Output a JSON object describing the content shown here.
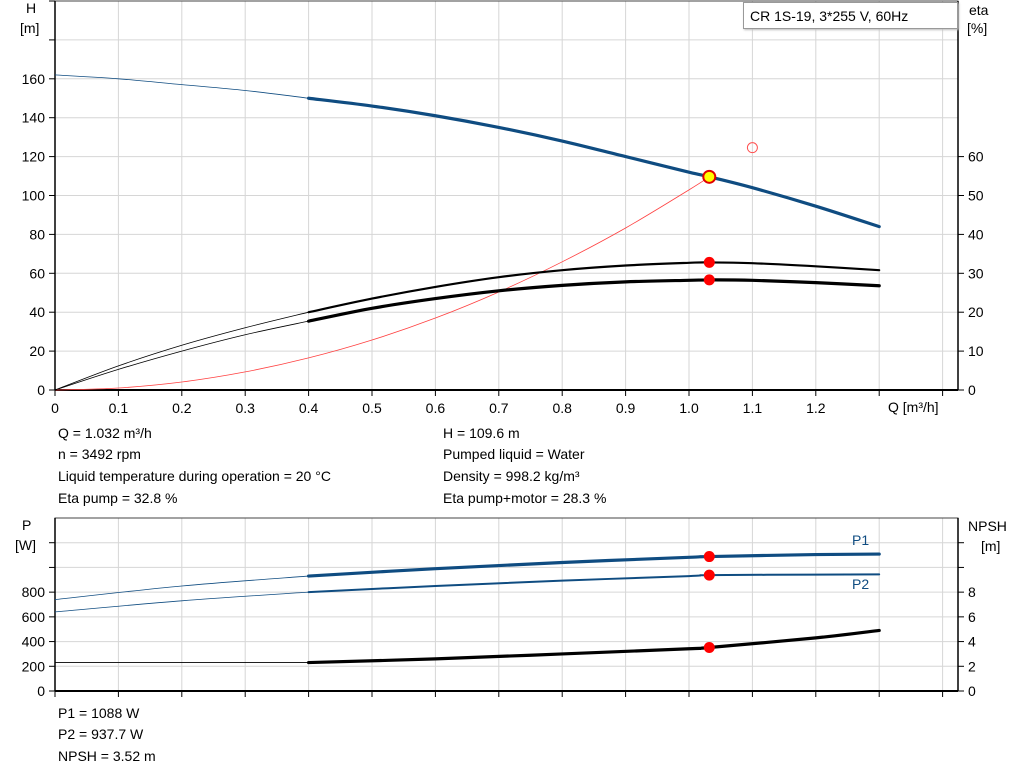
{
  "chart_data": [
    {
      "type": "line",
      "title": "",
      "legend_box": "CR 1S-19, 3*255 V, 60Hz",
      "xlabel": "Q [m³/h]",
      "ylabel_left": [
        "H",
        "[m]"
      ],
      "ylabel_right": [
        "eta",
        "[%]"
      ],
      "xlim": [
        0,
        1.42
      ],
      "ylim_left": [
        0,
        200
      ],
      "ylim_right": [
        0,
        100
      ],
      "x_ticks": [
        "0",
        "0.1",
        "0.2",
        "0.3",
        "0.4",
        "0.5",
        "0.6",
        "0.7",
        "0.8",
        "0.9",
        "1.0",
        "1.1",
        "1.2"
      ],
      "y_ticks_left": [
        "0",
        "20",
        "40",
        "60",
        "80",
        "100",
        "120",
        "140",
        "160"
      ],
      "y_ticks_right": [
        "0",
        "10",
        "20",
        "30",
        "40",
        "50",
        "60"
      ],
      "grid": true,
      "series": [
        {
          "name": "H",
          "axis": "left",
          "color": "#0f4c81",
          "x": [
            0,
            0.1,
            0.2,
            0.3,
            0.4,
            0.5,
            0.6,
            0.7,
            0.8,
            0.9,
            1.0,
            1.032,
            1.1,
            1.2,
            1.3
          ],
          "y": [
            162,
            160,
            157,
            154,
            150,
            146,
            141,
            135,
            128,
            120,
            112,
            109.6,
            104,
            94.5,
            84
          ]
        },
        {
          "name": "Eta pump",
          "axis": "right",
          "color": "#000000",
          "x": [
            0,
            0.1,
            0.2,
            0.3,
            0.4,
            0.5,
            0.6,
            0.7,
            0.8,
            0.9,
            1.0,
            1.032,
            1.1,
            1.2,
            1.3
          ],
          "y": [
            0,
            6.2,
            11.5,
            16,
            20,
            23.5,
            26.5,
            29,
            30.8,
            32,
            32.7,
            32.8,
            32.6,
            31.8,
            30.8
          ]
        },
        {
          "name": "Eta pump+motor",
          "axis": "right",
          "color": "#000000",
          "x": [
            0,
            0.1,
            0.2,
            0.3,
            0.4,
            0.5,
            0.6,
            0.7,
            0.8,
            0.9,
            1.0,
            1.032,
            1.1,
            1.2,
            1.3
          ],
          "y": [
            0,
            5.3,
            10,
            14.2,
            17.7,
            21,
            23.5,
            25.5,
            26.9,
            27.8,
            28.2,
            28.3,
            28.2,
            27.6,
            26.8
          ]
        },
        {
          "name": "System curve",
          "axis": "left",
          "color": "#ff4040",
          "x": [
            0,
            0.1,
            0.2,
            0.3,
            0.4,
            0.5,
            0.6,
            0.7,
            0.8,
            0.9,
            1.0,
            1.032
          ],
          "y": [
            0,
            1.03,
            4.1,
            9.3,
            16.5,
            25.7,
            37,
            50.4,
            65.9,
            83.3,
            102.9,
            109.6
          ]
        }
      ],
      "operating_point": {
        "q": 1.032,
        "h": 109.6,
        "eta_pump": 32.8,
        "eta_total": 28.3
      },
      "requested_point": {
        "q": 1.1,
        "h": 124.6
      },
      "thin_until_q": 0.4
    },
    {
      "type": "line",
      "title": "",
      "xlim": [
        0,
        1.42
      ],
      "ylabel_left": [
        "P",
        "[W]"
      ],
      "ylabel_right": [
        "NPSH",
        "[m]"
      ],
      "ylim_left": [
        0,
        1400
      ],
      "ylim_right": [
        0,
        14
      ],
      "y_ticks_left": [
        "0",
        "200",
        "400",
        "600",
        "800"
      ],
      "y_ticks_right": [
        "0",
        "2",
        "4",
        "6",
        "8"
      ],
      "grid": true,
      "series": [
        {
          "name": "P1",
          "axis": "left",
          "color": "#0f4c81",
          "x": [
            0,
            0.2,
            0.4,
            0.6,
            0.8,
            1.0,
            1.032,
            1.2,
            1.3
          ],
          "y": [
            740,
            850,
            930,
            990,
            1040,
            1082,
            1088,
            1104,
            1108
          ]
        },
        {
          "name": "P2",
          "axis": "left",
          "color": "#0f4c81",
          "x": [
            0,
            0.2,
            0.4,
            0.6,
            0.8,
            1.0,
            1.032,
            1.2,
            1.3
          ],
          "y": [
            640,
            730,
            800,
            850,
            893,
            930,
            937.7,
            942,
            944
          ]
        },
        {
          "name": "NPSH",
          "axis": "right",
          "color": "#000000",
          "x": [
            0,
            0.2,
            0.4,
            0.6,
            0.8,
            1.0,
            1.032,
            1.2,
            1.3
          ],
          "y": [
            2.3,
            2.3,
            2.3,
            2.6,
            3.0,
            3.42,
            3.52,
            4.3,
            4.9
          ]
        }
      ],
      "operating_point": {
        "q": 1.032,
        "p1": 1088,
        "p2": 937.7,
        "npsh": 3.52
      }
    }
  ],
  "readout_top": {
    "q": "Q = 1.032 m³/h",
    "n": "n = 3492 rpm",
    "temp": "Liquid temperature during operation = 20 °C",
    "eta_pump": "Eta pump = 32.8 %",
    "h": "H = 109.6 m",
    "liquid": "Pumped liquid = Water",
    "density": "Density = 998.2 kg/m³",
    "eta_total": "Eta pump+motor = 28.3 %"
  },
  "readout_bottom": {
    "p1": "P1 = 1088 W",
    "p2": "P2 = 937.7 W",
    "npsh": "NPSH = 3.52 m"
  }
}
